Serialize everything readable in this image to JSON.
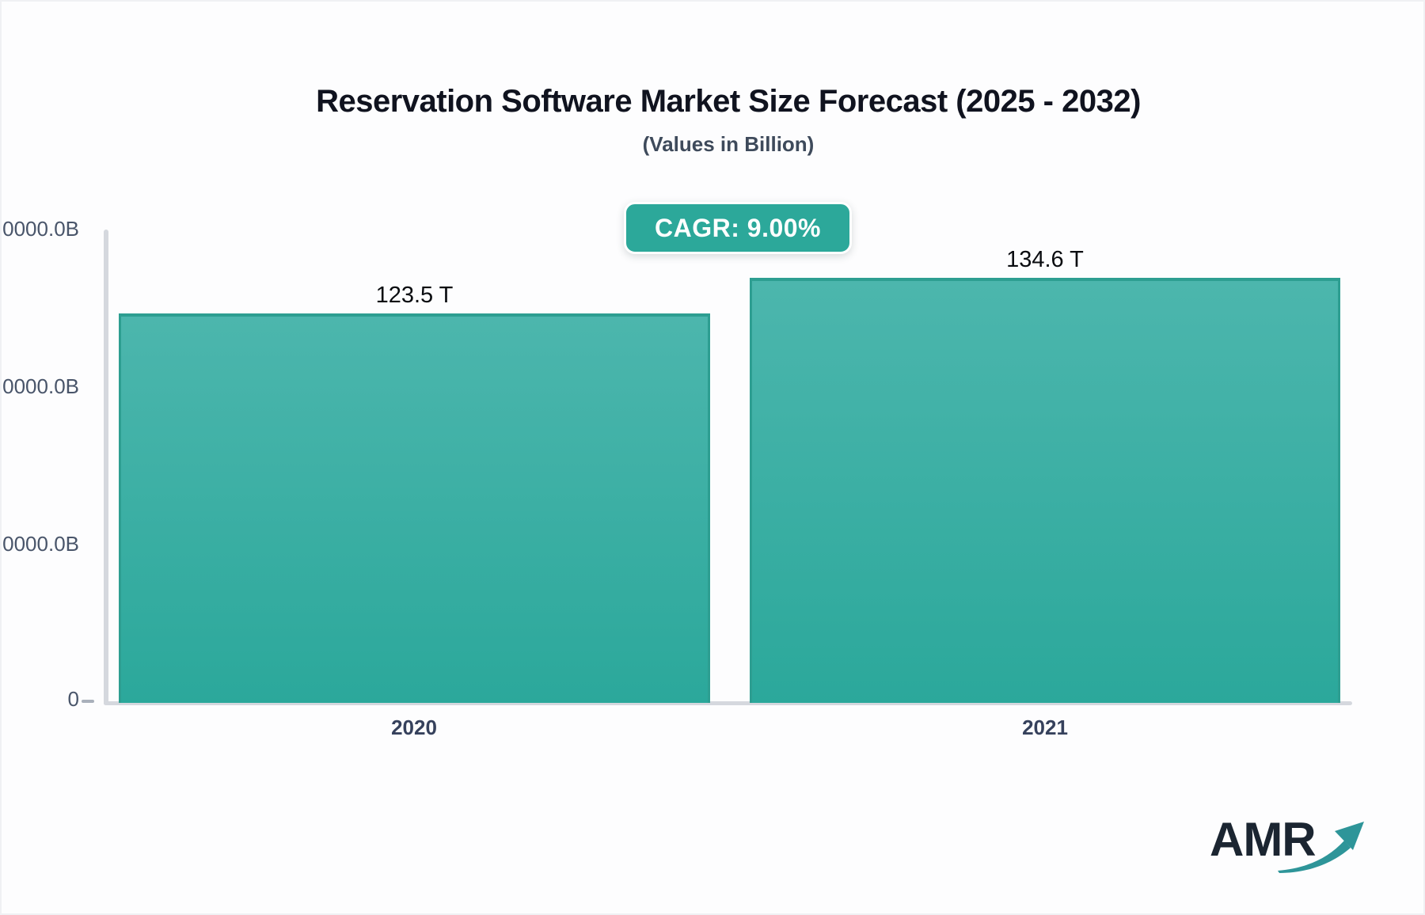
{
  "header": {
    "title": "Reservation Software Market Size Forecast (2025 - 2032)",
    "subtitle": "(Values in Billion)"
  },
  "cagr_badge": {
    "label": "CAGR: 9.00%",
    "color": "#2ca89a"
  },
  "chart_data": {
    "type": "bar",
    "title": "Reservation Software Market Size Forecast (2025 - 2032)",
    "subtitle": "(Values in Billion)",
    "categories": [
      "2020",
      "2021"
    ],
    "values": [
      123.5,
      134.6
    ],
    "value_labels": [
      "123.5 T",
      "134.6 T"
    ],
    "y_axis": {
      "tick_labels_top_to_bottom": [
        "0000.0B",
        "0000.0B",
        "0000.0B",
        "0"
      ],
      "ylim": [
        0,
        150
      ],
      "gridlines": false
    },
    "legend": false,
    "bar_color_top": "#4cb6ad",
    "bar_color_bottom": "#2ba89b",
    "bar_border_color": "#2d9e91"
  },
  "logo": {
    "text": "AMR",
    "text_color": "#1b2531",
    "arrow_color": "#2e9599"
  }
}
